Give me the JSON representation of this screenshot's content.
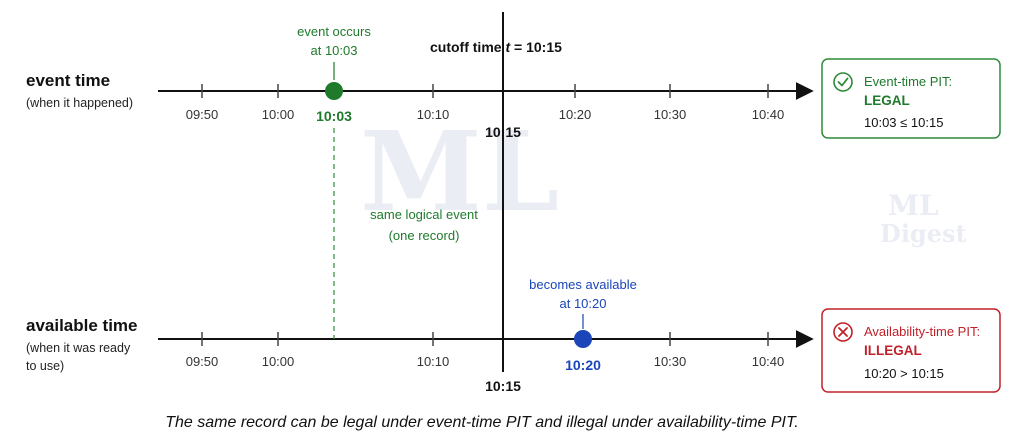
{
  "watermark": {
    "line1": "ML",
    "line2": "Digest"
  },
  "cutoff": {
    "prefix": "cutoff time ",
    "var": "t",
    "suffix": " = 10:15",
    "bottom_labels": [
      "10:15",
      "10:15"
    ]
  },
  "event_row": {
    "title": "event time",
    "subtitle": "(when it happened)",
    "ticks": [
      "09:50",
      "10:00",
      "10:10",
      "10:20",
      "10:30",
      "10:40"
    ],
    "marker_label": "10:03",
    "note_lines": [
      "event occurs",
      "at 10:03"
    ]
  },
  "available_row": {
    "title": "available time",
    "subtitle_lines": [
      "(when it was ready",
      "to use)"
    ],
    "ticks": [
      "09:50",
      "10:00",
      "10:10",
      "10:30",
      "10:40"
    ],
    "marker_label": "10:20",
    "note_lines": [
      "becomes available",
      "at 10:20"
    ]
  },
  "link_note": {
    "lines": [
      "same logical event",
      "(one record)"
    ]
  },
  "event_box": {
    "title": "Event-time PIT:",
    "verdict": "LEGAL",
    "expr": "10:03 ≤ 10:15",
    "icon": "check-circle-icon",
    "color": "#2e8b3a"
  },
  "available_box": {
    "title": "Availability-time PIT:",
    "verdict": "ILLEGAL",
    "expr": "10:20 > 10:15",
    "icon": "x-circle-icon",
    "color": "#c0212a"
  },
  "caption": "The same record can be legal under event-time PIT and illegal under availability-time PIT."
}
